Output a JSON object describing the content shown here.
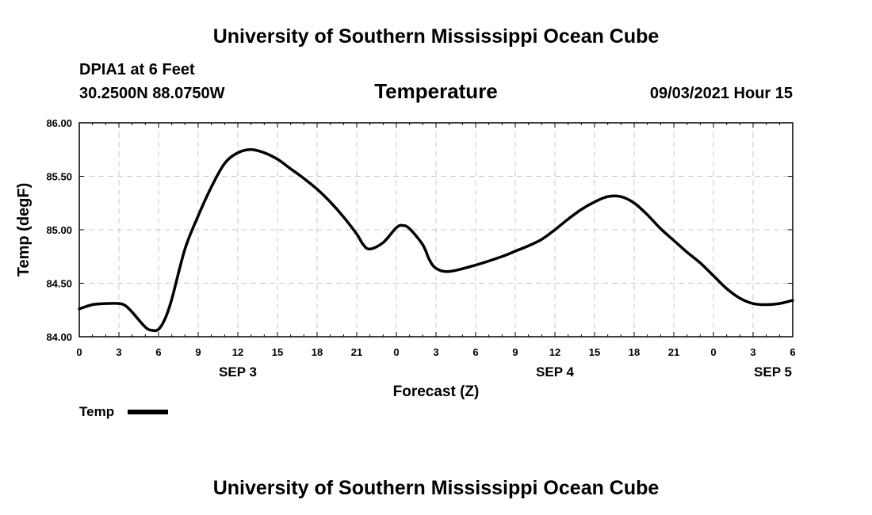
{
  "header": {
    "title_top": "University of Southern Mississippi Ocean Cube",
    "station": "DPIA1 at 6 Feet",
    "coords": "30.2500N  88.0750W",
    "subtitle": "Temperature",
    "datetime": "09/03/2021 Hour 15",
    "title_bottom": "University of Southern Mississippi Ocean Cube"
  },
  "chart_data": {
    "type": "line",
    "title": "Temperature",
    "xlabel": "Forecast (Z)",
    "ylabel": "Temp (degF)",
    "ylim": [
      84.0,
      86.0
    ],
    "xlim": [
      0,
      54
    ],
    "y_ticks": [
      "84.00",
      "84.50",
      "85.00",
      "85.50",
      "86.00"
    ],
    "x_ticks": [
      "0",
      "3",
      "6",
      "9",
      "12",
      "15",
      "18",
      "21",
      "0",
      "3",
      "6",
      "9",
      "12",
      "15",
      "18",
      "21",
      "0",
      "3",
      "6"
    ],
    "date_labels": [
      {
        "text": "SEP 3",
        "hour": 12
      },
      {
        "text": "SEP 4",
        "hour": 36
      },
      {
        "text": "SEP 5",
        "hour": 52.5
      }
    ],
    "grid": true,
    "legend": {
      "label": "Temp",
      "placement": "bottom-left"
    },
    "series": [
      {
        "name": "Temp",
        "color": "#000000",
        "x": [
          0,
          1,
          2,
          3,
          3.5,
          4,
          5,
          5.5,
          6,
          6.5,
          7,
          8,
          9,
          10,
          11,
          12,
          13,
          14,
          15,
          16,
          17,
          18,
          19,
          20,
          21,
          21.5,
          22,
          23,
          24,
          24.5,
          25,
          26,
          26.5,
          27,
          28,
          30,
          32,
          33,
          34,
          35,
          36,
          37,
          38,
          39,
          40,
          41,
          42,
          43,
          44,
          45,
          46,
          47,
          48,
          49,
          50,
          51,
          52,
          53,
          54
        ],
        "y": [
          84.26,
          84.3,
          84.31,
          84.31,
          84.29,
          84.23,
          84.09,
          84.06,
          84.07,
          84.17,
          84.35,
          84.82,
          85.13,
          85.4,
          85.62,
          85.72,
          85.75,
          85.72,
          85.66,
          85.57,
          85.48,
          85.38,
          85.26,
          85.12,
          84.96,
          84.86,
          84.82,
          84.88,
          85.02,
          85.04,
          85.01,
          84.86,
          84.72,
          84.64,
          84.61,
          84.67,
          84.75,
          84.8,
          84.85,
          84.91,
          85.0,
          85.1,
          85.19,
          85.26,
          85.31,
          85.31,
          85.25,
          85.14,
          85.01,
          84.9,
          84.79,
          84.69,
          84.57,
          84.45,
          84.36,
          84.31,
          84.3,
          84.31,
          84.34
        ]
      }
    ]
  }
}
